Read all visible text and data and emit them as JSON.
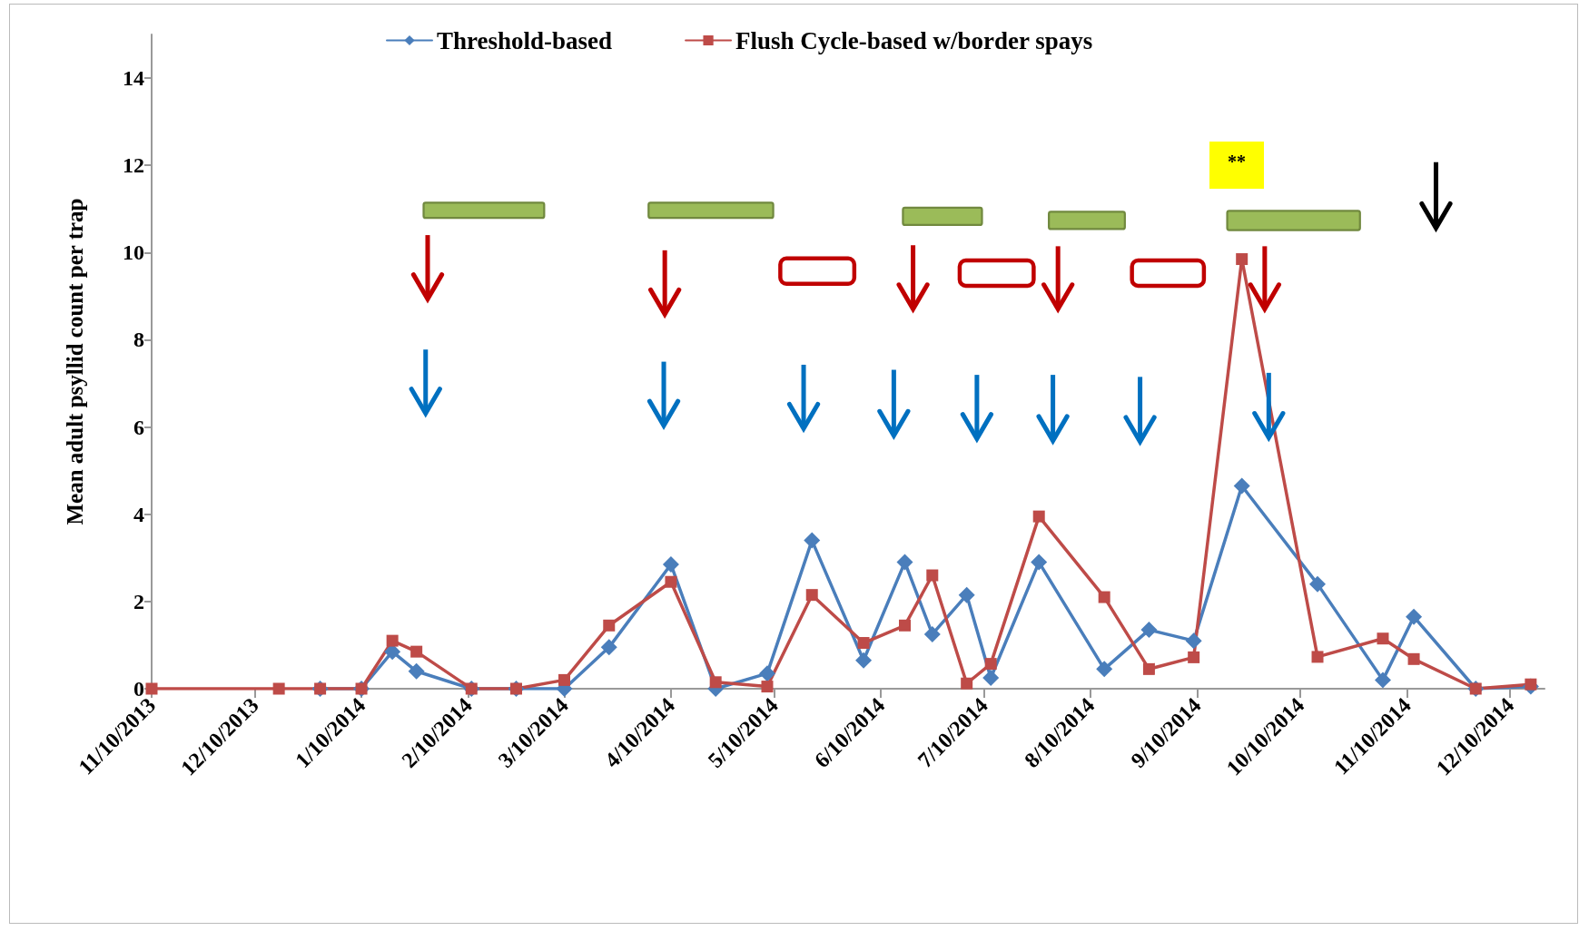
{
  "chart_data": {
    "type": "line",
    "ylabel": "Mean adult psyllid count per trap",
    "annotations": [
      "**"
    ],
    "x": [
      "2013-11-10",
      "2013-12-17",
      "2013-12-29",
      "2014-01-10",
      "2014-01-19",
      "2014-01-26",
      "2014-02-11",
      "2014-02-24",
      "2014-03-10",
      "2014-03-23",
      "2014-04-10",
      "2014-04-23",
      "2014-05-08",
      "2014-05-21",
      "2014-06-05",
      "2014-06-17",
      "2014-06-25",
      "2014-07-05",
      "2014-07-12",
      "2014-07-26",
      "2014-08-14",
      "2014-08-27",
      "2014-09-09",
      "2014-09-23",
      "2014-10-15",
      "2014-11-03",
      "2014-11-12",
      "2014-11-30",
      "2014-12-16"
    ],
    "series": [
      {
        "name": "Threshold-based",
        "color": "#4a7ebb",
        "marker": "diamond",
        "values": [
          null,
          null,
          0,
          0,
          0.85,
          0.4,
          0,
          0,
          0,
          0.95,
          2.85,
          0,
          0.35,
          3.4,
          0.65,
          2.9,
          1.25,
          2.15,
          0.25,
          2.9,
          0.45,
          1.35,
          1.1,
          4.65,
          2.4,
          0.2,
          1.65,
          0,
          0.05
        ]
      },
      {
        "name": "Flush Cycle-based w/border spays",
        "color": "#be4b48",
        "marker": "square",
        "values": [
          0,
          0,
          0,
          0,
          1.1,
          0.85,
          0,
          0,
          0.2,
          1.45,
          2.45,
          0.15,
          0.05,
          2.15,
          1.05,
          1.45,
          2.6,
          0.12,
          0.57,
          3.95,
          2.1,
          0.45,
          0.72,
          9.85,
          0.73,
          1.15,
          0.68,
          0,
          0.1
        ]
      }
    ],
    "xlim": [
      "2013-11-10",
      "2014-12-20"
    ],
    "xticks": [
      {
        "value": "2013-11-10",
        "label": "11/10/2013"
      },
      {
        "value": "2013-12-10",
        "label": "12/10/2013"
      },
      {
        "value": "2014-01-10",
        "label": "1/10/2014"
      },
      {
        "value": "2014-02-10",
        "label": "2/10/2014"
      },
      {
        "value": "2014-03-10",
        "label": "3/10/2014"
      },
      {
        "value": "2014-04-10",
        "label": "4/10/2014"
      },
      {
        "value": "2014-05-10",
        "label": "5/10/2014"
      },
      {
        "value": "2014-06-10",
        "label": "6/10/2014"
      },
      {
        "value": "2014-07-10",
        "label": "7/10/2014"
      },
      {
        "value": "2014-08-10",
        "label": "8/10/2014"
      },
      {
        "value": "2014-09-10",
        "label": "9/10/2014"
      },
      {
        "value": "2014-10-10",
        "label": "10/10/2014"
      },
      {
        "value": "2014-11-10",
        "label": "11/10/2014"
      },
      {
        "value": "2014-12-10",
        "label": "12/10/2014"
      }
    ],
    "ylim": [
      0,
      15
    ],
    "yticks": [
      0,
      2,
      4,
      6,
      8,
      10,
      12,
      14
    ],
    "grid": false,
    "legend": "top",
    "line_style": "solid"
  }
}
